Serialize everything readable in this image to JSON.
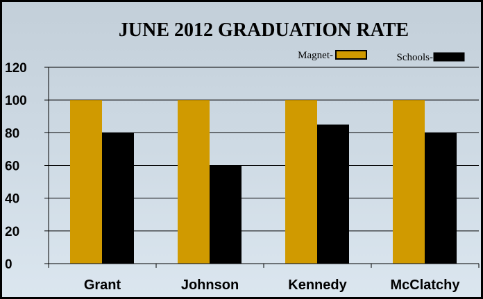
{
  "chart_data": {
    "type": "bar",
    "title": "JUNE 2012 GRADUATION RATE",
    "categories": [
      "Grant",
      "Johnson",
      "Kennedy",
      "McClatchy"
    ],
    "series": [
      {
        "name": "Magnet-",
        "color": "#d09a00",
        "values": [
          100,
          100,
          100,
          100
        ]
      },
      {
        "name": "Schools-",
        "color": "#000000",
        "values": [
          80,
          60,
          85,
          80
        ]
      }
    ],
    "yticks": [
      0,
      20,
      40,
      60,
      80,
      100,
      120
    ],
    "ylim": [
      0,
      120
    ],
    "grid": true,
    "legend_position": "top-right",
    "xlabel": "",
    "ylabel": ""
  }
}
